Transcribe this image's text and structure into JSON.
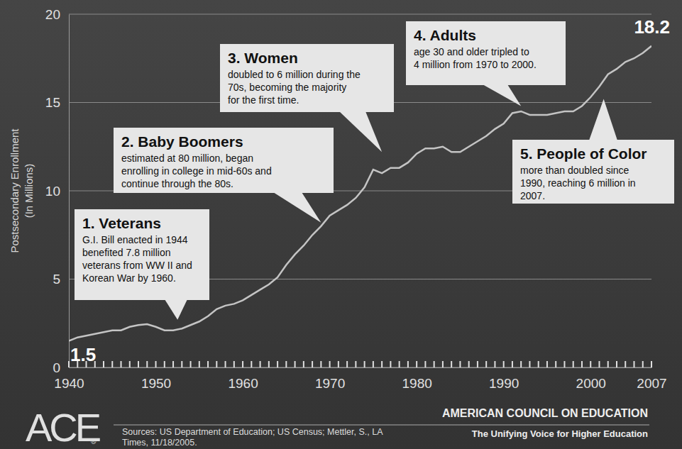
{
  "chart_data": {
    "type": "line",
    "y_label": [
      "Postsecondary Enrollment",
      "(In Millions)"
    ],
    "x": [
      1940,
      1941,
      1942,
      1943,
      1944,
      1945,
      1946,
      1947,
      1948,
      1949,
      1950,
      1951,
      1952,
      1953,
      1954,
      1955,
      1956,
      1957,
      1958,
      1959,
      1960,
      1961,
      1962,
      1963,
      1964,
      1965,
      1966,
      1967,
      1968,
      1969,
      1970,
      1971,
      1972,
      1973,
      1974,
      1975,
      1976,
      1977,
      1978,
      1979,
      1980,
      1981,
      1982,
      1983,
      1984,
      1985,
      1986,
      1987,
      1988,
      1989,
      1990,
      1991,
      1992,
      1993,
      1994,
      1995,
      1996,
      1997,
      1998,
      1999,
      2000,
      2001,
      2002,
      2003,
      2004,
      2005,
      2006,
      2007
    ],
    "values": [
      1.5,
      1.7,
      1.8,
      1.9,
      2.0,
      2.1,
      2.1,
      2.3,
      2.4,
      2.45,
      2.3,
      2.1,
      2.1,
      2.2,
      2.4,
      2.6,
      2.9,
      3.3,
      3.5,
      3.6,
      3.8,
      4.1,
      4.4,
      4.7,
      5.1,
      5.8,
      6.4,
      6.9,
      7.5,
      8.0,
      8.6,
      8.9,
      9.2,
      9.6,
      10.2,
      11.2,
      11.0,
      11.3,
      11.3,
      11.6,
      12.1,
      12.4,
      12.4,
      12.5,
      12.2,
      12.2,
      12.5,
      12.8,
      13.1,
      13.5,
      13.8,
      14.4,
      14.5,
      14.3,
      14.3,
      14.3,
      14.4,
      14.5,
      14.5,
      14.8,
      15.3,
      15.9,
      16.6,
      16.9,
      17.3,
      17.5,
      17.8,
      18.2
    ],
    "value_labels": [
      "1.5",
      null,
      null,
      null,
      null,
      null,
      null,
      null,
      null,
      null,
      null,
      null,
      null,
      null,
      null,
      null,
      null,
      null,
      null,
      null,
      null,
      null,
      null,
      null,
      null,
      null,
      null,
      null,
      null,
      null,
      null,
      null,
      null,
      null,
      null,
      null,
      null,
      null,
      null,
      null,
      null,
      null,
      null,
      null,
      null,
      null,
      null,
      null,
      null,
      null,
      null,
      null,
      null,
      null,
      null,
      null,
      null,
      null,
      null,
      null,
      null,
      null,
      null,
      null,
      null,
      null,
      null,
      "18.2"
    ],
    "color": "#c4c4c4",
    "line_style": "solid",
    "xlim": [
      1940,
      2007
    ],
    "xticks": [
      1940,
      1950,
      1960,
      1970,
      1980,
      1990,
      2000,
      2007
    ],
    "ylim": [
      0,
      20
    ],
    "yticks": [
      0,
      5,
      10,
      15,
      20
    ],
    "grid": true,
    "annotations": [
      {
        "title": "1. Veterans",
        "lines": [
          "G.I. Bill enacted in 1944",
          "benefited 7.8 million",
          "veterans from WW II and",
          "Korean War by 1960."
        ],
        "x": 1952.5,
        "y": 2.7
      },
      {
        "title": "2. Baby Boomers",
        "lines": [
          "estimated at 80 million, began",
          "enrolling in college in mid-60s and",
          "continue through the 80s."
        ],
        "x": 1969,
        "y": 8.2
      },
      {
        "title": "3. Women",
        "lines": [
          "doubled to 6 million during the",
          "70s, becoming the majority",
          "for the first time."
        ],
        "x": 1976,
        "y": 12.2
      },
      {
        "title": "4. Adults",
        "lines": [
          "age 30 and older tripled to",
          "4 million from 1970 to 2000."
        ],
        "x": 1992,
        "y": 14.8
      },
      {
        "title": "5. People of Color",
        "lines": [
          "more than doubled since",
          "1990, reaching 6 million in",
          "2007."
        ],
        "x": 2001.5,
        "y": 15.2
      }
    ]
  },
  "footer": {
    "logo": "ACE",
    "logo_mark": "®",
    "sources": [
      "Sources: US Department of Education; US Census; Mettler, S., LA",
      "Times, 11/18/2005."
    ],
    "organization": "AMERICAN COUNCIL ON EDUCATION",
    "tagline": "The Unifying Voice for Higher Education"
  }
}
